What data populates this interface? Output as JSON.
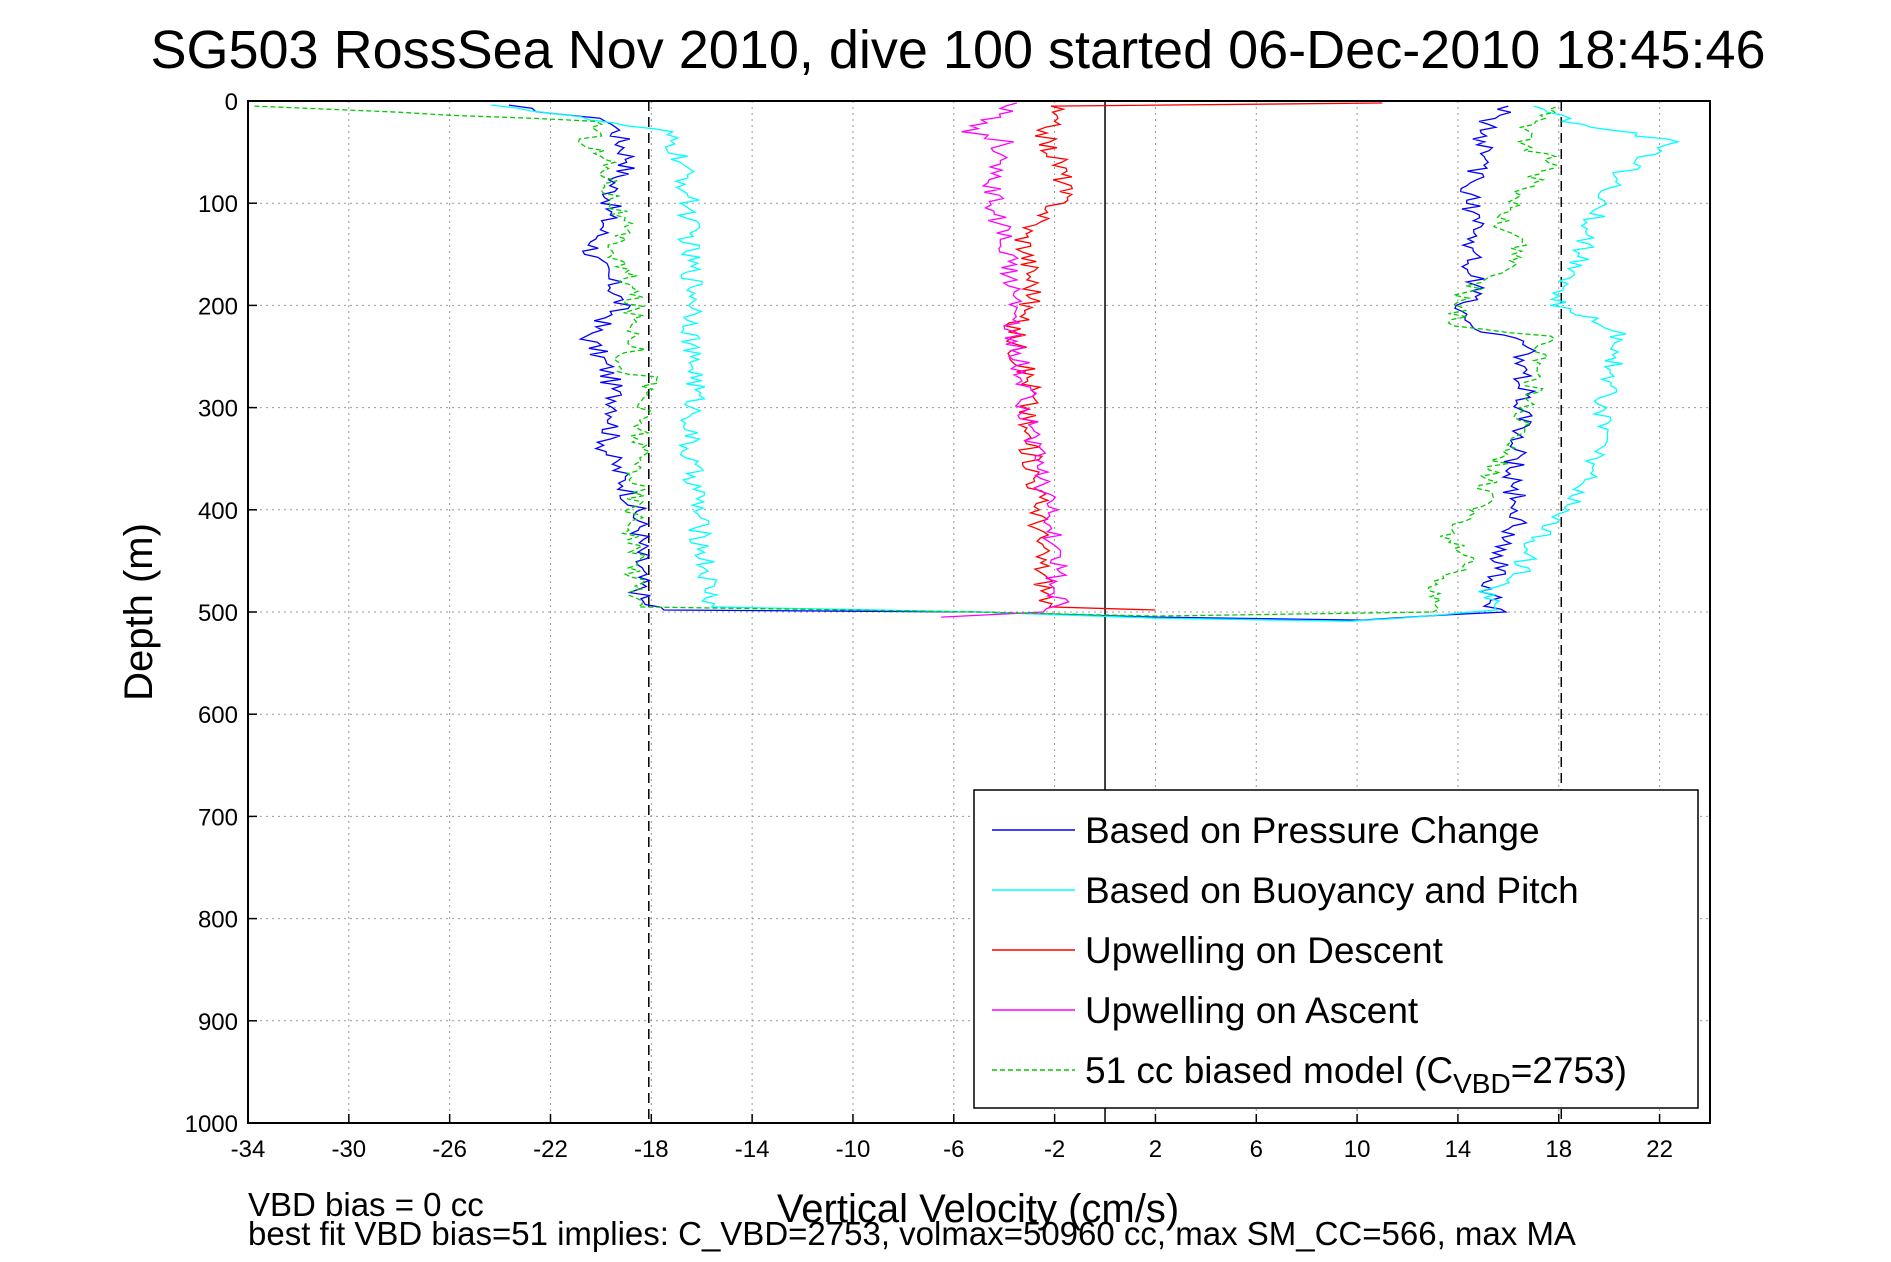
{
  "chart_data": {
    "type": "line",
    "title": "SG503 RossSea Nov 2010, dive 100 started 06-Dec-2010 18:45:46",
    "xlabel": "Vertical Velocity (cm/s)",
    "ylabel": "Depth (m)",
    "xlim": [
      -34,
      24
    ],
    "ylim": [
      0,
      1000
    ],
    "y_reversed": true,
    "xticks": [
      -34,
      -30,
      -26,
      -22,
      -18,
      -14,
      -10,
      -6,
      -2,
      2,
      6,
      10,
      14,
      18,
      22
    ],
    "yticks": [
      0,
      100,
      200,
      300,
      400,
      500,
      600,
      700,
      800,
      900,
      1000
    ],
    "grid": true,
    "legend_position": "bottom-right",
    "footnotes": [
      "VBD bias = 0 cc",
      "best fit VBD bias=51 implies: C_VBD=2753, volmax=50960 cc, max SM_CC=566, max MA"
    ],
    "reference_lines": [
      {
        "x": 0,
        "style": "solid",
        "color": "#000000"
      },
      {
        "x": -18.1,
        "style": "dashed",
        "color": "#000000"
      },
      {
        "x": 18.1,
        "style": "dashed",
        "color": "#000000"
      }
    ],
    "series": [
      {
        "name": "Based on Pressure Change",
        "color": "#0000ff",
        "style": "solid",
        "points": [
          [
            -24,
            4
          ],
          [
            -19.5,
            20
          ],
          [
            -19.2,
            40
          ],
          [
            -18.8,
            60
          ],
          [
            -19.5,
            80
          ],
          [
            -19.6,
            100
          ],
          [
            -19.8,
            120
          ],
          [
            -20.4,
            150
          ],
          [
            -19.5,
            180
          ],
          [
            -19.2,
            200
          ],
          [
            -20.5,
            230
          ],
          [
            -19.8,
            260
          ],
          [
            -19.3,
            300
          ],
          [
            -19.8,
            340
          ],
          [
            -18.9,
            380
          ],
          [
            -18.4,
            420
          ],
          [
            -18.5,
            460
          ],
          [
            -18.4,
            490
          ],
          [
            -17.5,
            498
          ],
          [
            -5,
            500
          ],
          [
            2,
            505
          ],
          [
            10,
            508
          ],
          [
            15.6,
            500
          ],
          [
            15.2,
            480
          ],
          [
            15.5,
            460
          ],
          [
            15.8,
            430
          ],
          [
            16.5,
            410
          ],
          [
            16.2,
            380
          ],
          [
            16.2,
            350
          ],
          [
            16.5,
            320
          ],
          [
            16.7,
            290
          ],
          [
            16.5,
            260
          ],
          [
            16.8,
            235
          ],
          [
            14.3,
            220
          ],
          [
            14.3,
            200
          ],
          [
            14.8,
            180
          ],
          [
            14.5,
            150
          ],
          [
            15.0,
            120
          ],
          [
            14.4,
            100
          ],
          [
            14.6,
            80
          ],
          [
            14.8,
            60
          ],
          [
            15.0,
            40
          ],
          [
            15.2,
            20
          ],
          [
            16,
            5
          ]
        ]
      },
      {
        "name": "Based on Buoyancy and Pitch",
        "color": "#00ffff",
        "style": "solid",
        "points": [
          [
            -24,
            4
          ],
          [
            -17.5,
            30
          ],
          [
            -16.8,
            60
          ],
          [
            -16.5,
            100
          ],
          [
            -16.5,
            150
          ],
          [
            -16.2,
            200
          ],
          [
            -16.5,
            250
          ],
          [
            -16.2,
            265
          ],
          [
            -16.3,
            300
          ],
          [
            -16.6,
            340
          ],
          [
            -16.2,
            380
          ],
          [
            -16.1,
            420
          ],
          [
            -15.8,
            460
          ],
          [
            -15.6,
            495
          ],
          [
            -5,
            500
          ],
          [
            2,
            506
          ],
          [
            10,
            509
          ],
          [
            15.6,
            498
          ],
          [
            15.2,
            480
          ],
          [
            16.5,
            460
          ],
          [
            17.0,
            430
          ],
          [
            18.0,
            410
          ],
          [
            19.0,
            380
          ],
          [
            19.5,
            340
          ],
          [
            19.8,
            300
          ],
          [
            20.2,
            260
          ],
          [
            20.5,
            225
          ],
          [
            18.0,
            200
          ],
          [
            18.5,
            170
          ],
          [
            19.0,
            140
          ],
          [
            19.5,
            110
          ],
          [
            20.5,
            70
          ],
          [
            22.5,
            40
          ],
          [
            18.5,
            20
          ],
          [
            17.0,
            5
          ]
        ]
      },
      {
        "name": "Upwelling on Descent",
        "color": "#ff0000",
        "style": "solid",
        "points": [
          [
            11,
            2
          ],
          [
            -2,
            5
          ],
          [
            -2.2,
            20
          ],
          [
            -2.4,
            40
          ],
          [
            -1.8,
            60
          ],
          [
            -1.6,
            80
          ],
          [
            -1.8,
            100
          ],
          [
            -3.2,
            130
          ],
          [
            -3.0,
            160
          ],
          [
            -2.8,
            190
          ],
          [
            -3.6,
            220
          ],
          [
            -3.4,
            250
          ],
          [
            -2.9,
            280
          ],
          [
            -3.2,
            320
          ],
          [
            -2.8,
            360
          ],
          [
            -2.6,
            400
          ],
          [
            -2.6,
            440
          ],
          [
            -2.4,
            470
          ],
          [
            -2.2,
            495
          ],
          [
            2,
            498
          ]
        ]
      },
      {
        "name": "Upwelling on Ascent",
        "color": "#ff00ff",
        "style": "solid",
        "points": [
          [
            -6.5,
            505
          ],
          [
            -2.5,
            500
          ],
          [
            -1.8,
            490
          ],
          [
            -1.9,
            470
          ],
          [
            -2.0,
            440
          ],
          [
            -2.3,
            400
          ],
          [
            -2.6,
            360
          ],
          [
            -3.0,
            320
          ],
          [
            -3.2,
            280
          ],
          [
            -3.4,
            250
          ],
          [
            -3.7,
            220
          ],
          [
            -3.5,
            190
          ],
          [
            -3.8,
            160
          ],
          [
            -4.2,
            120
          ],
          [
            -4.5,
            80
          ],
          [
            -4.0,
            40
          ],
          [
            -5.5,
            30
          ],
          [
            -4.0,
            10
          ],
          [
            -3.5,
            2
          ]
        ]
      },
      {
        "name": "51 cc biased model (C_VBD=2753)",
        "color": "#00cc00",
        "style": "dashed",
        "points": [
          [
            -34,
            5
          ],
          [
            -20,
            20
          ],
          [
            -20.5,
            40
          ],
          [
            -19.8,
            60
          ],
          [
            -19.6,
            90
          ],
          [
            -19.2,
            120
          ],
          [
            -19.5,
            150
          ],
          [
            -18.8,
            180
          ],
          [
            -18.7,
            210
          ],
          [
            -18.5,
            240
          ],
          [
            -19.5,
            262
          ],
          [
            -18.0,
            270
          ],
          [
            -18.4,
            300
          ],
          [
            -18.5,
            340
          ],
          [
            -18.6,
            380
          ],
          [
            -18.7,
            420
          ],
          [
            -18.6,
            460
          ],
          [
            -18.5,
            495
          ],
          [
            -5,
            500
          ],
          [
            2,
            504
          ],
          [
            13,
            500
          ],
          [
            13.3,
            470
          ],
          [
            14.5,
            450
          ],
          [
            13.5,
            420
          ],
          [
            14.8,
            400
          ],
          [
            15.2,
            370
          ],
          [
            16.8,
            300
          ],
          [
            17.2,
            260
          ],
          [
            17.5,
            230
          ],
          [
            13.8,
            220
          ],
          [
            14.2,
            190
          ],
          [
            16.5,
            150
          ],
          [
            15.8,
            120
          ],
          [
            16.8,
            80
          ],
          [
            17.8,
            60
          ],
          [
            16.5,
            40
          ],
          [
            17.0,
            20
          ],
          [
            18.0,
            5
          ]
        ]
      }
    ]
  }
}
